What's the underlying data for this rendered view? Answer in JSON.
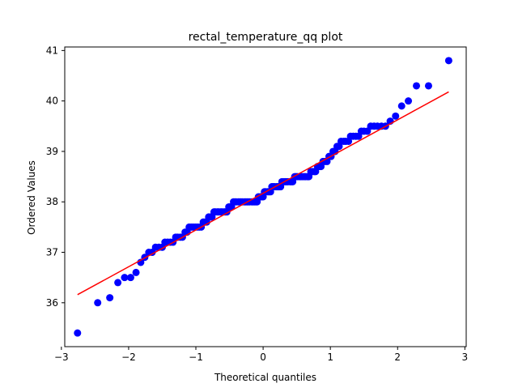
{
  "chart_data": {
    "type": "scatter",
    "title": "rectal_temperature_qq plot",
    "xlabel": "Theoretical quantiles",
    "ylabel": "Ordered Values",
    "xlim": [
      -2.95,
      3.02
    ],
    "ylim": [
      35.13,
      41.07
    ],
    "xticks": [
      -3,
      -2,
      -1,
      0,
      1,
      2,
      3
    ],
    "xtick_labels": [
      "−3",
      "−2",
      "−1",
      "0",
      "1",
      "2",
      "3"
    ],
    "yticks": [
      36,
      37,
      38,
      39,
      40,
      41
    ],
    "ytick_labels": [
      "36",
      "37",
      "38",
      "39",
      "40",
      "41"
    ],
    "grid": false,
    "legend": "none",
    "colors": {
      "points": "#0000ff",
      "fit_line": "#ff0000",
      "axes": "#000000"
    },
    "fit_line": {
      "x": [
        -2.76,
        2.76
      ],
      "y": [
        36.16,
        40.18
      ]
    },
    "series": [
      {
        "x": [
          -2.76,
          -2.46,
          -2.28,
          -2.16,
          -2.06,
          -1.97,
          -1.89,
          -1.82,
          -1.76,
          -1.7,
          -1.65,
          -1.6,
          -1.55,
          -1.5,
          -1.46,
          -1.42,
          -1.38,
          -1.34,
          -1.3,
          -1.27,
          -1.23,
          -1.2,
          -1.16,
          -1.13,
          -1.1,
          -1.07,
          -1.04,
          -1.01,
          -0.98,
          -0.95,
          -0.92,
          -0.89,
          -0.86,
          -0.84,
          -0.81,
          -0.78,
          -0.76,
          -0.73,
          -0.71,
          -0.68,
          -0.66,
          -0.63,
          -0.61,
          -0.58,
          -0.56,
          -0.54,
          -0.51,
          -0.49,
          -0.47,
          -0.44,
          -0.42,
          -0.4,
          -0.37,
          -0.35,
          -0.33,
          -0.31,
          -0.28,
          -0.26,
          -0.24,
          -0.22,
          -0.2,
          -0.17,
          -0.15,
          -0.13,
          -0.11,
          -0.09,
          -0.07,
          -0.04,
          -0.02,
          0.0,
          0.02,
          0.04,
          0.07,
          0.09,
          0.11,
          0.13,
          0.15,
          0.17,
          0.2,
          0.22,
          0.24,
          0.26,
          0.28,
          0.31,
          0.33,
          0.35,
          0.37,
          0.4,
          0.42,
          0.44,
          0.47,
          0.49,
          0.51,
          0.54,
          0.56,
          0.58,
          0.61,
          0.63,
          0.66,
          0.68,
          0.71,
          0.73,
          0.76,
          0.78,
          0.81,
          0.84,
          0.86,
          0.89,
          0.92,
          0.95,
          0.98,
          1.01,
          1.04,
          1.07,
          1.1,
          1.13,
          1.16,
          1.2,
          1.23,
          1.27,
          1.3,
          1.34,
          1.38,
          1.42,
          1.46,
          1.5,
          1.55,
          1.6,
          1.65,
          1.7,
          1.76,
          1.82,
          1.89,
          1.97,
          2.06,
          2.16,
          2.28,
          2.46,
          2.76
        ],
        "y": [
          35.4,
          36.0,
          36.1,
          36.4,
          36.5,
          36.5,
          36.6,
          36.8,
          36.9,
          37.0,
          37.0,
          37.1,
          37.1,
          37.1,
          37.2,
          37.2,
          37.2,
          37.2,
          37.3,
          37.3,
          37.3,
          37.3,
          37.4,
          37.4,
          37.5,
          37.5,
          37.5,
          37.5,
          37.5,
          37.5,
          37.5,
          37.6,
          37.6,
          37.6,
          37.7,
          37.7,
          37.7,
          37.8,
          37.8,
          37.8,
          37.8,
          37.8,
          37.8,
          37.8,
          37.8,
          37.8,
          37.9,
          37.9,
          37.9,
          38.0,
          38.0,
          38.0,
          38.0,
          38.0,
          38.0,
          38.0,
          38.0,
          38.0,
          38.0,
          38.0,
          38.0,
          38.0,
          38.0,
          38.0,
          38.0,
          38.0,
          38.1,
          38.1,
          38.1,
          38.1,
          38.2,
          38.2,
          38.2,
          38.2,
          38.2,
          38.3,
          38.3,
          38.3,
          38.3,
          38.3,
          38.3,
          38.3,
          38.4,
          38.4,
          38.4,
          38.4,
          38.4,
          38.4,
          38.4,
          38.4,
          38.5,
          38.5,
          38.5,
          38.5,
          38.5,
          38.5,
          38.5,
          38.5,
          38.5,
          38.5,
          38.6,
          38.6,
          38.6,
          38.6,
          38.7,
          38.7,
          38.7,
          38.8,
          38.8,
          38.8,
          38.9,
          38.9,
          39.0,
          39.0,
          39.1,
          39.1,
          39.2,
          39.2,
          39.2,
          39.2,
          39.3,
          39.3,
          39.3,
          39.3,
          39.4,
          39.4,
          39.4,
          39.5,
          39.5,
          39.5,
          39.5,
          39.5,
          39.6,
          39.7,
          39.9,
          40.0,
          40.3,
          40.3,
          40.8
        ]
      }
    ]
  }
}
